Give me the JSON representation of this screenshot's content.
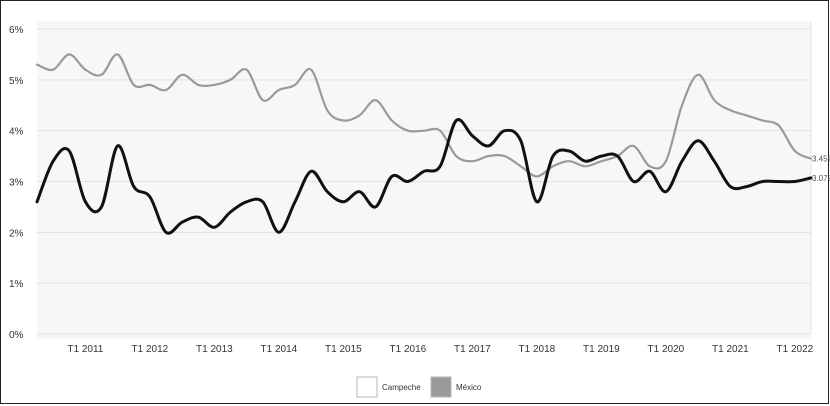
{
  "chart_data": {
    "type": "line",
    "title": "",
    "xlabel": "",
    "ylabel": "",
    "ylim": [
      0,
      6
    ],
    "y_ticks": [
      "0%",
      "1%",
      "2%",
      "3%",
      "4%",
      "5%",
      "6%"
    ],
    "x_tick_labels": [
      "T1 2011",
      "T1 2012",
      "T1 2013",
      "T1 2014",
      "T1 2015",
      "T1 2016",
      "T1 2017",
      "T1 2018",
      "T1 2019",
      "T1 2020",
      "T1 2021",
      "T1 2022"
    ],
    "x_tick_positions": [
      2011,
      2012,
      2013,
      2014,
      2015,
      2016,
      2017,
      2018,
      2019,
      2020,
      2021,
      2022
    ],
    "xlim": [
      2010.25,
      2022.25
    ],
    "grid": true,
    "legend_position": "bottom-center",
    "end_labels": [
      "3.45%",
      "3.07%"
    ],
    "series": [
      {
        "name": "México",
        "color": "#9a9a9a",
        "x": [
          2010.25,
          2010.5,
          2010.75,
          2011,
          2011.25,
          2011.5,
          2011.75,
          2012,
          2012.25,
          2012.5,
          2012.75,
          2013,
          2013.25,
          2013.5,
          2013.75,
          2014,
          2014.25,
          2014.5,
          2014.75,
          2015,
          2015.25,
          2015.5,
          2015.75,
          2016,
          2016.25,
          2016.5,
          2016.75,
          2017,
          2017.25,
          2017.5,
          2017.75,
          2018,
          2018.25,
          2018.5,
          2018.75,
          2019,
          2019.25,
          2019.5,
          2019.75,
          2020,
          2020.25,
          2020.5,
          2020.75,
          2021,
          2021.25,
          2021.5,
          2021.75,
          2022,
          2022.25
        ],
        "values": [
          5.3,
          5.2,
          5.5,
          5.2,
          5.1,
          5.5,
          4.9,
          4.9,
          4.8,
          5.1,
          4.9,
          4.9,
          5.0,
          5.2,
          4.6,
          4.8,
          4.9,
          5.2,
          4.4,
          4.2,
          4.3,
          4.6,
          4.2,
          4.0,
          4.0,
          4.0,
          3.5,
          3.4,
          3.5,
          3.5,
          3.3,
          3.1,
          3.3,
          3.4,
          3.3,
          3.4,
          3.5,
          3.7,
          3.3,
          3.4,
          4.5,
          5.1,
          4.6,
          4.4,
          4.3,
          4.2,
          4.1,
          3.6,
          3.45
        ]
      },
      {
        "name": "Campeche",
        "color": "#111111",
        "x": [
          2010.25,
          2010.5,
          2010.75,
          2011,
          2011.25,
          2011.5,
          2011.75,
          2012,
          2012.25,
          2012.5,
          2012.75,
          2013,
          2013.25,
          2013.5,
          2013.75,
          2014,
          2014.25,
          2014.5,
          2014.75,
          2015,
          2015.25,
          2015.5,
          2015.75,
          2016,
          2016.25,
          2016.5,
          2016.75,
          2017,
          2017.25,
          2017.5,
          2017.75,
          2018,
          2018.25,
          2018.5,
          2018.75,
          2019,
          2019.25,
          2019.5,
          2019.75,
          2020,
          2020.25,
          2020.5,
          2020.75,
          2021,
          2021.25,
          2021.5,
          2021.75,
          2022,
          2022.25
        ],
        "values": [
          2.6,
          3.4,
          3.6,
          2.6,
          2.5,
          3.7,
          2.9,
          2.7,
          2.0,
          2.2,
          2.3,
          2.1,
          2.4,
          2.6,
          2.6,
          2.0,
          2.6,
          3.2,
          2.8,
          2.6,
          2.8,
          2.5,
          3.1,
          3.0,
          3.2,
          3.3,
          4.2,
          3.9,
          3.7,
          4.0,
          3.8,
          2.6,
          3.5,
          3.6,
          3.4,
          3.5,
          3.5,
          3.0,
          3.2,
          2.8,
          3.4,
          3.8,
          3.4,
          2.9,
          2.9,
          3.0,
          3.0,
          3.0,
          3.07
        ]
      }
    ]
  },
  "legend": [
    {
      "label": "Campeche",
      "swatch": "#ffffff"
    },
    {
      "label": "México",
      "swatch": "#9a9a9a"
    }
  ]
}
